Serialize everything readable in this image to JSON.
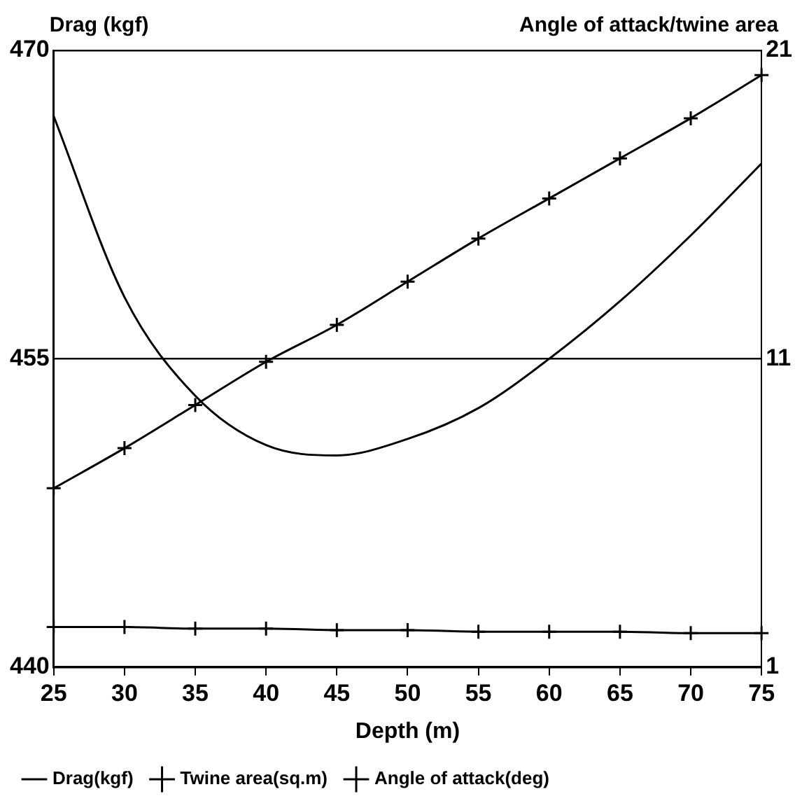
{
  "chart_data": {
    "type": "line",
    "xlabel": "Depth (m)",
    "ylabel": "Drag (kgf)",
    "y2label": "Angle of attack/twine area",
    "x": [
      25,
      30,
      35,
      40,
      45,
      50,
      55,
      60,
      65,
      70,
      75
    ],
    "series": [
      {
        "name": "Drag(kgf)",
        "color": "#000000",
        "marker": "none",
        "values": [
          466.8,
          458,
          453.2,
          450.8,
          450.3,
          451.1,
          452.6,
          455,
          457.8,
          461,
          464.5
        ]
      },
      {
        "name": "Twine area(sq.m)",
        "color": "#000000",
        "marker": "cross",
        "axis": "y2",
        "values": [
          6.8,
          8.1,
          9.5,
          10.9,
          12.1,
          13.5,
          14.9,
          16.2,
          17.5,
          18.8,
          20.2
        ]
      },
      {
        "name": "Angle of attack(deg)",
        "color": "#000000",
        "marker": "cross",
        "axis": "y2",
        "values": [
          2.3,
          2.3,
          2.25,
          2.25,
          2.2,
          2.2,
          2.15,
          2.15,
          2.15,
          2.1,
          2.1
        ]
      }
    ],
    "xlim": [
      25,
      75
    ],
    "xticks": [
      25,
      30,
      35,
      40,
      45,
      50,
      55,
      60,
      65,
      70,
      75
    ],
    "ylim": [
      440,
      470
    ],
    "yticks": [
      440,
      455,
      470
    ],
    "y2lim": [
      1,
      21
    ],
    "y2ticks": [
      1,
      11,
      21
    ],
    "grid": "y",
    "legend": "bottom",
    "line_style": "solid"
  }
}
